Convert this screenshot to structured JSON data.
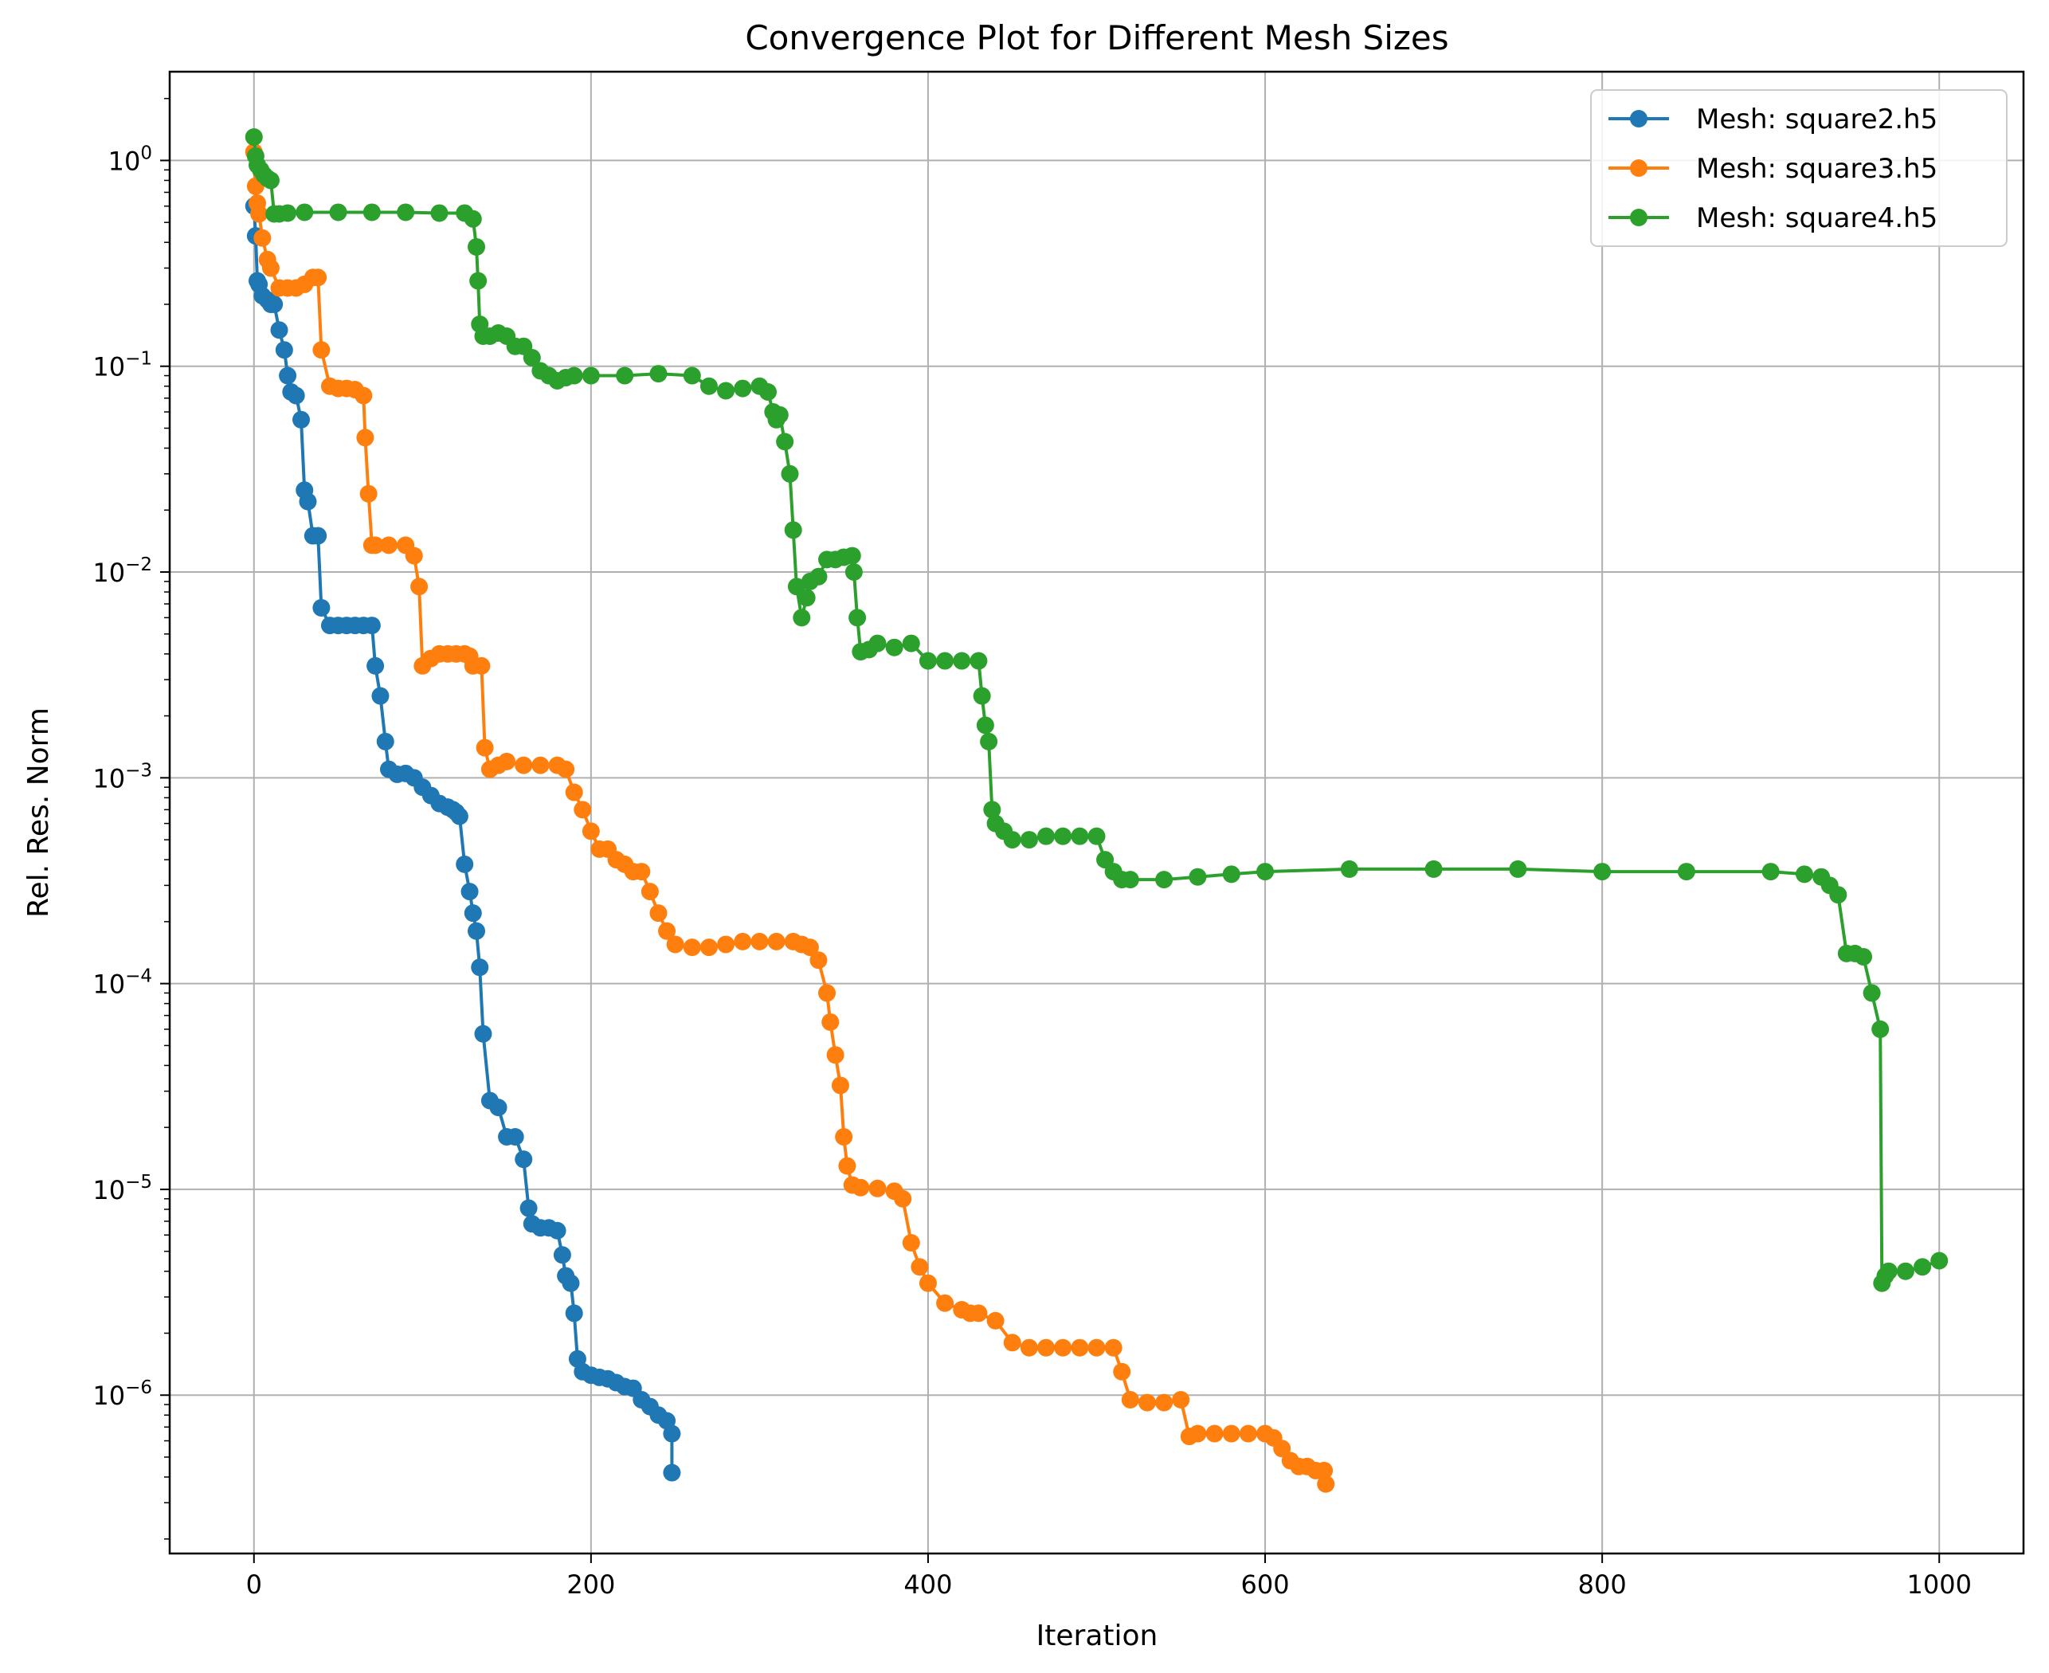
{
  "chart_data": {
    "type": "line",
    "title": "Convergence Plot for Different Mesh Sizes",
    "xlabel": "Iteration",
    "ylabel": "Rel. Res. Norm",
    "yscale": "log",
    "xlim": [
      -50,
      1050
    ],
    "ylim": [
      1.7e-07,
      2.7
    ],
    "xticks": [
      0,
      200,
      400,
      600,
      800,
      1000
    ],
    "xtick_labels": [
      "0",
      "200",
      "400",
      "600",
      "800",
      "1000"
    ],
    "yticks": [
      1e-06,
      1e-05,
      0.0001,
      0.001,
      0.01,
      0.1,
      1
    ],
    "ytick_labels": [
      {
        "base": "10",
        "exp": "−6"
      },
      {
        "base": "10",
        "exp": "−5"
      },
      {
        "base": "10",
        "exp": "−4"
      },
      {
        "base": "10",
        "exp": "−3"
      },
      {
        "base": "10",
        "exp": "−2"
      },
      {
        "base": "10",
        "exp": "−1"
      },
      {
        "base": "10",
        "exp": "0"
      }
    ],
    "grid": true,
    "legend_position": "top-right",
    "series": [
      {
        "name": "Mesh: square2.h5",
        "color": "#1f77b4",
        "x": [
          0,
          1,
          2,
          3,
          5,
          8,
          10,
          12,
          15,
          18,
          20,
          22,
          25,
          28,
          30,
          32,
          35,
          38,
          40,
          45,
          50,
          55,
          60,
          65,
          70,
          72,
          75,
          78,
          80,
          85,
          90,
          95,
          100,
          105,
          110,
          115,
          118,
          120,
          122,
          125,
          128,
          130,
          132,
          134,
          136,
          140,
          145,
          150,
          155,
          160,
          163,
          165,
          170,
          175,
          180,
          183,
          185,
          188,
          190,
          192,
          195,
          200,
          205,
          210,
          215,
          220,
          225,
          230,
          235,
          240,
          245,
          248,
          248
        ],
        "y": [
          0.6,
          0.43,
          0.26,
          0.25,
          0.22,
          0.21,
          0.2,
          0.2,
          0.15,
          0.12,
          0.09,
          0.075,
          0.072,
          0.055,
          0.025,
          0.022,
          0.015,
          0.015,
          0.0067,
          0.0055,
          0.0055,
          0.0055,
          0.0055,
          0.0055,
          0.0055,
          0.0035,
          0.0025,
          0.0015,
          0.0011,
          0.00104,
          0.00105,
          0.001,
          0.0009,
          0.00082,
          0.00075,
          0.00072,
          0.0007,
          0.00068,
          0.00065,
          0.00038,
          0.00028,
          0.00022,
          0.00018,
          0.00012,
          5.7e-05,
          2.7e-05,
          2.5e-05,
          1.8e-05,
          1.8e-05,
          1.4e-05,
          8.1e-06,
          6.8e-06,
          6.5e-06,
          6.5e-06,
          6.3e-06,
          4.8e-06,
          3.8e-06,
          3.5e-06,
          2.5e-06,
          1.5e-06,
          1.3e-06,
          1.25e-06,
          1.22e-06,
          1.2e-06,
          1.15e-06,
          1.1e-06,
          1.08e-06,
          9.5e-07,
          8.8e-07,
          8e-07,
          7.5e-07,
          6.5e-07,
          4.2e-07
        ]
      },
      {
        "name": "Mesh: square3.h5",
        "color": "#ff7f0e",
        "x": [
          0,
          1,
          2,
          3,
          5,
          8,
          10,
          15,
          20,
          25,
          30,
          35,
          38,
          40,
          45,
          50,
          55,
          60,
          65,
          66,
          68,
          70,
          72,
          80,
          90,
          95,
          98,
          100,
          105,
          110,
          115,
          120,
          125,
          128,
          130,
          135,
          137,
          140,
          145,
          150,
          160,
          170,
          180,
          185,
          190,
          195,
          200,
          205,
          210,
          215,
          220,
          225,
          230,
          235,
          240,
          245,
          250,
          260,
          270,
          280,
          290,
          300,
          310,
          320,
          325,
          330,
          335,
          340,
          342,
          345,
          348,
          350,
          352,
          355,
          360,
          370,
          380,
          385,
          390,
          395,
          400,
          410,
          420,
          425,
          430,
          440,
          450,
          460,
          470,
          480,
          490,
          500,
          510,
          515,
          520,
          530,
          540,
          550,
          555,
          560,
          570,
          580,
          590,
          600,
          605,
          610,
          615,
          620,
          625,
          630,
          635,
          636
        ],
        "y": [
          1.1,
          0.75,
          0.62,
          0.55,
          0.42,
          0.33,
          0.3,
          0.24,
          0.24,
          0.24,
          0.25,
          0.27,
          0.27,
          0.12,
          0.08,
          0.078,
          0.078,
          0.077,
          0.072,
          0.045,
          0.024,
          0.0135,
          0.0135,
          0.0135,
          0.0135,
          0.012,
          0.0085,
          0.0035,
          0.0038,
          0.004,
          0.004,
          0.004,
          0.004,
          0.0039,
          0.0035,
          0.0035,
          0.0014,
          0.0011,
          0.00115,
          0.0012,
          0.00115,
          0.00115,
          0.00115,
          0.0011,
          0.00085,
          0.0007,
          0.00055,
          0.00045,
          0.00045,
          0.0004,
          0.00038,
          0.00035,
          0.00035,
          0.00028,
          0.00022,
          0.00018,
          0.000155,
          0.00015,
          0.00015,
          0.000155,
          0.00016,
          0.00016,
          0.00016,
          0.00016,
          0.000155,
          0.00015,
          0.00013,
          9e-05,
          6.5e-05,
          4.5e-05,
          3.2e-05,
          1.8e-05,
          1.3e-05,
          1.05e-05,
          1.02e-05,
          1.01e-05,
          9.8e-06,
          9e-06,
          5.5e-06,
          4.2e-06,
          3.5e-06,
          2.8e-06,
          2.6e-06,
          2.5e-06,
          2.5e-06,
          2.3e-06,
          1.8e-06,
          1.7e-06,
          1.7e-06,
          1.7e-06,
          1.7e-06,
          1.7e-06,
          1.7e-06,
          1.3e-06,
          9.5e-07,
          9.2e-07,
          9.2e-07,
          9.5e-07,
          6.3e-07,
          6.5e-07,
          6.5e-07,
          6.5e-07,
          6.5e-07,
          6.5e-07,
          6.2e-07,
          5.5e-07,
          4.8e-07,
          4.5e-07,
          4.5e-07,
          4.3e-07,
          4.3e-07,
          3.7e-07
        ]
      },
      {
        "name": "Mesh: square4.h5",
        "color": "#2ca02c",
        "x": [
          0,
          1,
          2,
          4,
          6,
          8,
          10,
          12,
          15,
          20,
          30,
          50,
          70,
          90,
          110,
          125,
          130,
          132,
          133,
          134,
          136,
          140,
          145,
          150,
          155,
          160,
          165,
          170,
          175,
          180,
          185,
          190,
          200,
          220,
          240,
          260,
          270,
          280,
          290,
          300,
          305,
          308,
          310,
          312,
          315,
          318,
          320,
          322,
          325,
          328,
          330,
          335,
          340,
          345,
          350,
          355,
          356,
          358,
          360,
          365,
          370,
          380,
          390,
          400,
          410,
          420,
          430,
          432,
          434,
          436,
          438,
          440,
          445,
          450,
          460,
          470,
          480,
          490,
          500,
          505,
          510,
          515,
          520,
          540,
          560,
          580,
          600,
          650,
          700,
          750,
          800,
          850,
          900,
          920,
          930,
          935,
          940,
          945,
          950,
          955,
          960,
          965,
          966,
          968,
          970,
          980,
          990,
          1000
        ],
        "y": [
          1.3,
          1.05,
          0.95,
          0.9,
          0.85,
          0.82,
          0.8,
          0.55,
          0.55,
          0.555,
          0.56,
          0.56,
          0.56,
          0.56,
          0.555,
          0.555,
          0.52,
          0.38,
          0.26,
          0.16,
          0.14,
          0.14,
          0.145,
          0.14,
          0.125,
          0.125,
          0.11,
          0.095,
          0.09,
          0.085,
          0.088,
          0.09,
          0.09,
          0.09,
          0.092,
          0.09,
          0.08,
          0.076,
          0.078,
          0.08,
          0.075,
          0.06,
          0.055,
          0.058,
          0.043,
          0.03,
          0.016,
          0.0085,
          0.006,
          0.0075,
          0.009,
          0.0095,
          0.0115,
          0.0115,
          0.0118,
          0.012,
          0.01,
          0.006,
          0.0041,
          0.0042,
          0.0045,
          0.0043,
          0.0045,
          0.0037,
          0.0037,
          0.0037,
          0.0037,
          0.0025,
          0.0018,
          0.0015,
          0.0007,
          0.0006,
          0.00055,
          0.0005,
          0.0005,
          0.00052,
          0.00052,
          0.00052,
          0.00052,
          0.0004,
          0.00035,
          0.00032,
          0.00032,
          0.00032,
          0.00033,
          0.00034,
          0.00035,
          0.00036,
          0.00036,
          0.00036,
          0.00035,
          0.00035,
          0.00035,
          0.00034,
          0.00033,
          0.0003,
          0.00027,
          0.00014,
          0.00014,
          0.000135,
          9e-05,
          6e-05,
          3.5e-06,
          3.8e-06,
          4e-06,
          4e-06,
          4.2e-06,
          4.5e-06
        ]
      }
    ]
  }
}
